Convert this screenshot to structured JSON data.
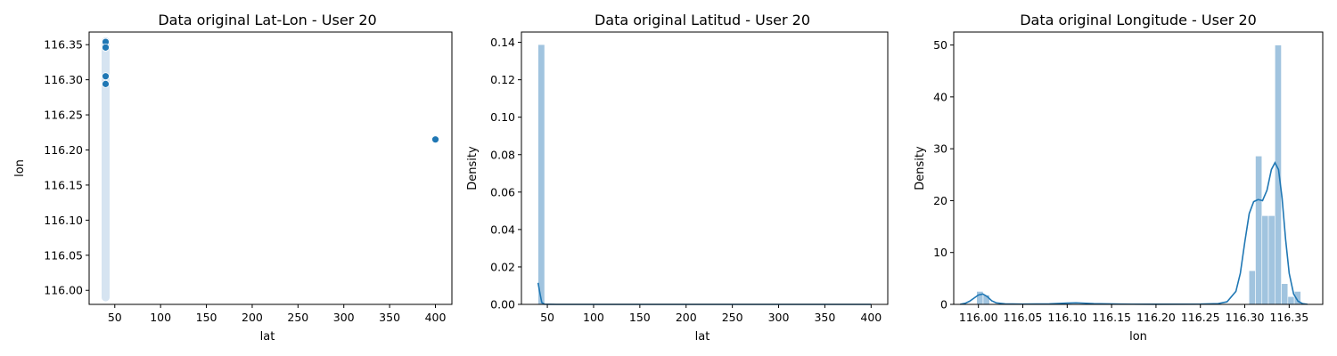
{
  "colors": {
    "primary": "#1f77b4",
    "bar_fill": "#a1c4df",
    "band_fill": "#d6e4f1",
    "axis": "#000000"
  },
  "chart_data": [
    {
      "type": "scatter",
      "title": "Data original Lat-Lon - User 20",
      "xlabel": "lat",
      "ylabel": "lon",
      "xlim": [
        22,
        418
      ],
      "ylim": [
        115.98,
        116.368
      ],
      "xticks": [
        50,
        100,
        150,
        200,
        250,
        300,
        350,
        400
      ],
      "yticks": [
        116.0,
        116.05,
        116.1,
        116.15,
        116.2,
        116.25,
        116.3,
        116.35
      ],
      "yticklabels": [
        "116.00",
        "116.05",
        "116.10",
        "116.15",
        "116.20",
        "116.25",
        "116.30",
        "116.35"
      ],
      "dense_band": {
        "x": 40,
        "y_from": 115.99,
        "y_to": 116.355
      },
      "points": [
        {
          "x": 40,
          "y": 116.354
        },
        {
          "x": 40,
          "y": 116.346
        },
        {
          "x": 40,
          "y": 116.305
        },
        {
          "x": 40,
          "y": 116.294
        },
        {
          "x": 400,
          "y": 116.215
        }
      ]
    },
    {
      "type": "bar",
      "title": "Data original Latitud - User 20",
      "xlabel": "lat",
      "ylabel": "Density",
      "xlim": [
        22,
        418
      ],
      "ylim": [
        0,
        0.1455
      ],
      "xticks": [
        50,
        100,
        150,
        200,
        250,
        300,
        350,
        400
      ],
      "yticks": [
        0.0,
        0.02,
        0.04,
        0.06,
        0.08,
        0.1,
        0.12,
        0.14
      ],
      "yticklabels": [
        "0.00",
        "0.02",
        "0.04",
        "0.06",
        "0.08",
        "0.10",
        "0.12",
        "0.14"
      ],
      "bins": [
        {
          "x0": 39.9,
          "x1": 47.1,
          "value": 0.1388
        }
      ],
      "kde": [
        {
          "x": 40,
          "y": 0.0115
        },
        {
          "x": 42,
          "y": 0.006
        },
        {
          "x": 44,
          "y": 0.001
        },
        {
          "x": 47,
          "y": 0.0001
        },
        {
          "x": 60,
          "y": 0
        },
        {
          "x": 400,
          "y": 0
        }
      ]
    },
    {
      "type": "bar",
      "title": "Data original Longitude - User 20",
      "xlabel": "lon",
      "ylabel": "Density",
      "xlim": [
        115.9722,
        116.3878
      ],
      "ylim": [
        0,
        52.5
      ],
      "xticks": [
        116.0,
        116.05,
        116.1,
        116.15,
        116.2,
        116.25,
        116.3,
        116.35
      ],
      "xticklabels": [
        "116.00",
        "116.05",
        "116.10",
        "116.15",
        "116.20",
        "116.25",
        "116.30",
        "116.35"
      ],
      "yticks": [
        0,
        10,
        20,
        30,
        40,
        50
      ],
      "bins": [
        {
          "x0": 115.998,
          "x1": 116.0053,
          "value": 2.5
        },
        {
          "x0": 116.0053,
          "x1": 116.0126,
          "value": 1.8
        },
        {
          "x0": 116.3047,
          "x1": 116.312,
          "value": 6.5
        },
        {
          "x0": 116.312,
          "x1": 116.3193,
          "value": 28.6
        },
        {
          "x0": 116.3193,
          "x1": 116.3266,
          "value": 17.1
        },
        {
          "x0": 116.3266,
          "x1": 116.3339,
          "value": 17.1
        },
        {
          "x0": 116.3339,
          "x1": 116.3412,
          "value": 50.0
        },
        {
          "x0": 116.3412,
          "x1": 116.3485,
          "value": 4.0
        },
        {
          "x0": 116.3485,
          "x1": 116.3558,
          "value": 1.5
        },
        {
          "x0": 116.3558,
          "x1": 116.3631,
          "value": 2.5
        }
      ],
      "kde": [
        {
          "x": 115.9795,
          "y": 0.02
        },
        {
          "x": 115.985,
          "y": 0.2
        },
        {
          "x": 115.99,
          "y": 0.6
        },
        {
          "x": 115.995,
          "y": 1.2
        },
        {
          "x": 116.0,
          "y": 1.8
        },
        {
          "x": 116.005,
          "y": 2.0
        },
        {
          "x": 116.01,
          "y": 1.5
        },
        {
          "x": 116.015,
          "y": 0.7
        },
        {
          "x": 116.02,
          "y": 0.3
        },
        {
          "x": 116.03,
          "y": 0.1
        },
        {
          "x": 116.05,
          "y": 0.05
        },
        {
          "x": 116.08,
          "y": 0.1
        },
        {
          "x": 116.1,
          "y": 0.25
        },
        {
          "x": 116.11,
          "y": 0.3
        },
        {
          "x": 116.13,
          "y": 0.15
        },
        {
          "x": 116.16,
          "y": 0.05
        },
        {
          "x": 116.2,
          "y": 0.03
        },
        {
          "x": 116.25,
          "y": 0.05
        },
        {
          "x": 116.27,
          "y": 0.15
        },
        {
          "x": 116.28,
          "y": 0.5
        },
        {
          "x": 116.29,
          "y": 2.5
        },
        {
          "x": 116.295,
          "y": 6.0
        },
        {
          "x": 116.3,
          "y": 12.0
        },
        {
          "x": 116.305,
          "y": 17.5
        },
        {
          "x": 116.31,
          "y": 19.8
        },
        {
          "x": 116.315,
          "y": 20.2
        },
        {
          "x": 116.32,
          "y": 20.0
        },
        {
          "x": 116.325,
          "y": 22.0
        },
        {
          "x": 116.33,
          "y": 26.0
        },
        {
          "x": 116.334,
          "y": 27.3
        },
        {
          "x": 116.338,
          "y": 26.0
        },
        {
          "x": 116.342,
          "y": 20.5
        },
        {
          "x": 116.346,
          "y": 12.5
        },
        {
          "x": 116.35,
          "y": 6.0
        },
        {
          "x": 116.355,
          "y": 2.0
        },
        {
          "x": 116.36,
          "y": 0.6
        },
        {
          "x": 116.365,
          "y": 0.15
        },
        {
          "x": 116.3705,
          "y": 0.02
        }
      ]
    }
  ]
}
